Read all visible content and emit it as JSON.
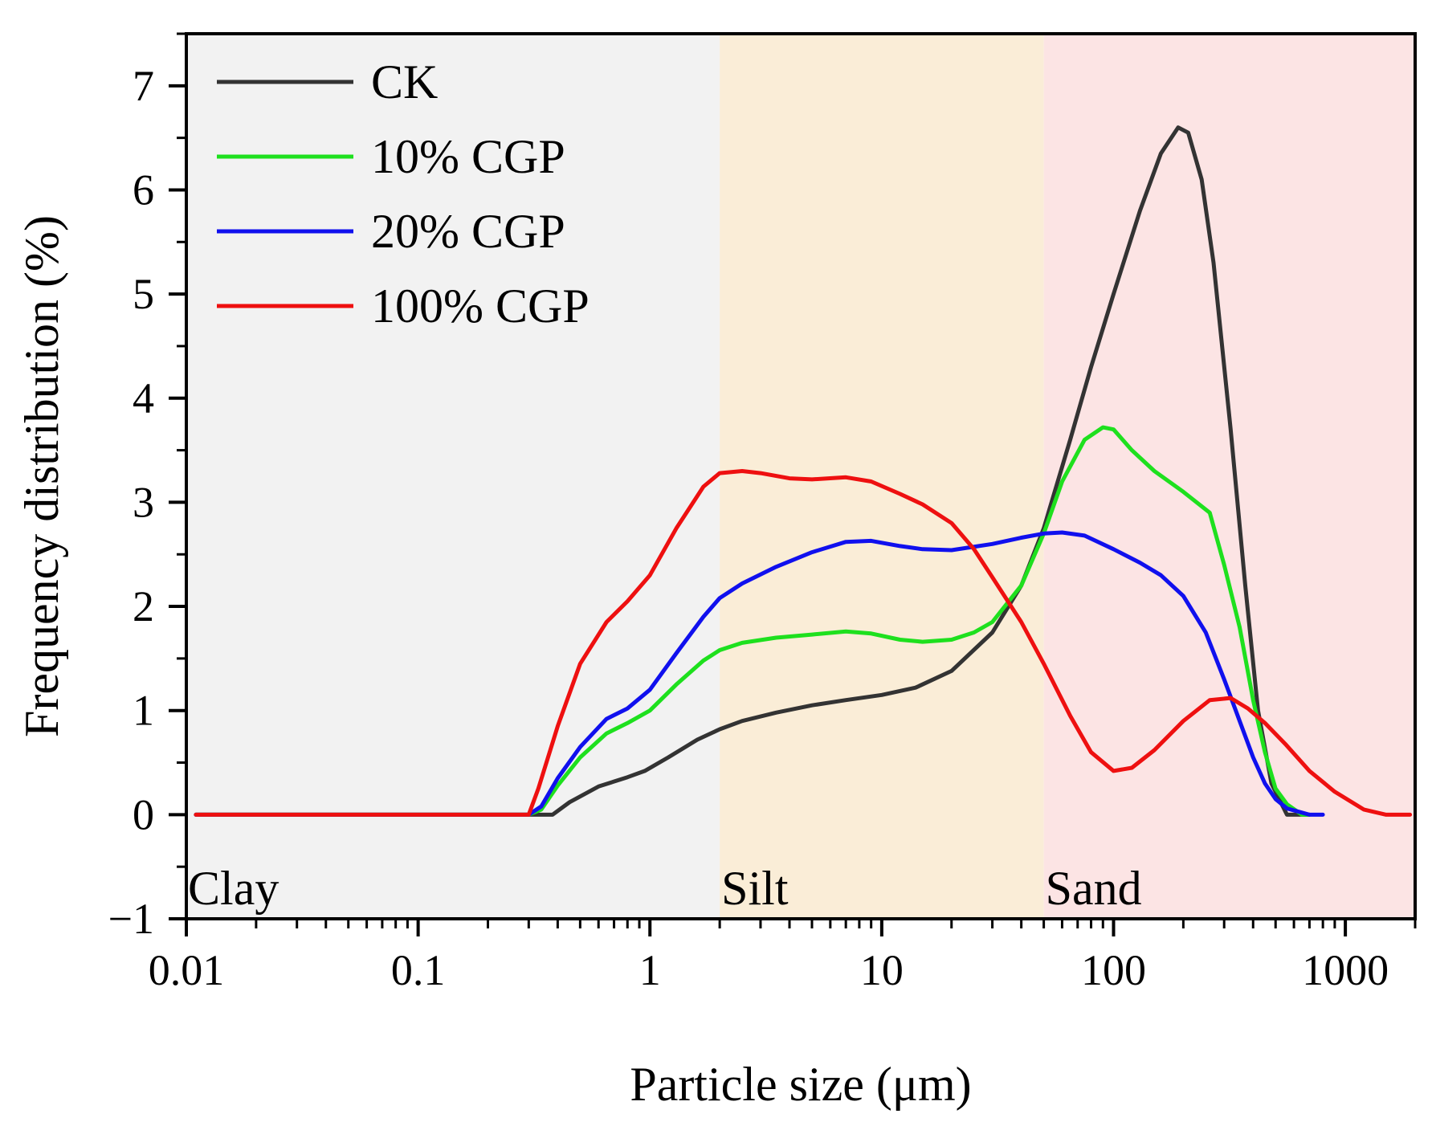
{
  "chart_data": {
    "type": "line",
    "xscale": "log",
    "xlim": [
      0.01,
      2000
    ],
    "ylim": [
      -1,
      7.5
    ],
    "xlabel": "Particle size (μm)",
    "ylabel": "Frequency distribution (%)",
    "xticks": [
      {
        "value": 0.01,
        "label": "0.01"
      },
      {
        "value": 0.1,
        "label": "0.1"
      },
      {
        "value": 1,
        "label": "1"
      },
      {
        "value": 10,
        "label": "10"
      },
      {
        "value": 100,
        "label": "100"
      },
      {
        "value": 1000,
        "label": "1000"
      }
    ],
    "yticks": [
      {
        "value": -1,
        "label": "−1"
      },
      {
        "value": 0,
        "label": "0"
      },
      {
        "value": 1,
        "label": "1"
      },
      {
        "value": 2,
        "label": "2"
      },
      {
        "value": 3,
        "label": "3"
      },
      {
        "value": 4,
        "label": "4"
      },
      {
        "value": 5,
        "label": "5"
      },
      {
        "value": 6,
        "label": "6"
      },
      {
        "value": 7,
        "label": "7"
      }
    ],
    "regions": [
      {
        "name": "Clay",
        "from": 0.01,
        "to": 2,
        "color": "#f2f2f2"
      },
      {
        "name": "Silt",
        "from": 2,
        "to": 50,
        "color": "#faedd7"
      },
      {
        "name": "Sand",
        "from": 50,
        "to": 2000,
        "color": "#fce4e4"
      }
    ],
    "legend_position": "top-left",
    "series": [
      {
        "name": "CK",
        "color": "#333333",
        "x": [
          0.011,
          0.3,
          0.38,
          0.45,
          0.6,
          0.8,
          0.95,
          1.2,
          1.6,
          2.0,
          2.5,
          3.5,
          5,
          7,
          10,
          14,
          20,
          30,
          40,
          50,
          65,
          80,
          100,
          130,
          160,
          190,
          210,
          240,
          270,
          320,
          370,
          420,
          480,
          560,
          650,
          700
        ],
        "y": [
          0,
          0,
          0,
          0.12,
          0.27,
          0.36,
          0.42,
          0.55,
          0.72,
          0.82,
          0.9,
          0.98,
          1.05,
          1.1,
          1.15,
          1.22,
          1.38,
          1.75,
          2.2,
          2.75,
          3.6,
          4.3,
          5.0,
          5.8,
          6.35,
          6.6,
          6.55,
          6.1,
          5.3,
          3.7,
          2.2,
          1.0,
          0.3,
          0.0,
          0.0,
          0.0
        ]
      },
      {
        "name": "10% CGP",
        "color": "#1ee01e",
        "x": [
          0.011,
          0.3,
          0.34,
          0.4,
          0.5,
          0.65,
          0.8,
          1.0,
          1.3,
          1.7,
          2.0,
          2.5,
          3.5,
          5,
          7,
          9,
          12,
          15,
          20,
          25,
          30,
          40,
          50,
          60,
          75,
          90,
          100,
          120,
          150,
          200,
          260,
          300,
          350,
          400,
          450,
          500,
          560,
          650,
          700
        ],
        "y": [
          0,
          0,
          0.05,
          0.28,
          0.55,
          0.78,
          0.88,
          1.0,
          1.25,
          1.48,
          1.58,
          1.65,
          1.7,
          1.73,
          1.76,
          1.74,
          1.68,
          1.66,
          1.68,
          1.75,
          1.85,
          2.2,
          2.7,
          3.2,
          3.6,
          3.72,
          3.7,
          3.5,
          3.3,
          3.1,
          2.9,
          2.4,
          1.8,
          1.1,
          0.6,
          0.25,
          0.1,
          0.0,
          0.0
        ]
      },
      {
        "name": "20% CGP",
        "color": "#1010ee",
        "x": [
          0.011,
          0.3,
          0.34,
          0.4,
          0.5,
          0.65,
          0.8,
          1.0,
          1.3,
          1.7,
          2.0,
          2.5,
          3.5,
          5,
          7,
          9,
          12,
          15,
          20,
          30,
          40,
          50,
          60,
          75,
          100,
          130,
          160,
          200,
          250,
          300,
          350,
          400,
          450,
          500,
          560,
          650,
          700,
          800
        ],
        "y": [
          0,
          0,
          0.08,
          0.35,
          0.65,
          0.92,
          1.02,
          1.2,
          1.55,
          1.9,
          2.08,
          2.22,
          2.38,
          2.52,
          2.62,
          2.63,
          2.58,
          2.55,
          2.54,
          2.6,
          2.66,
          2.7,
          2.71,
          2.68,
          2.55,
          2.42,
          2.3,
          2.1,
          1.75,
          1.3,
          0.9,
          0.55,
          0.3,
          0.15,
          0.06,
          0.02,
          0.0,
          0.0
        ]
      },
      {
        "name": "100% CGP",
        "color": "#ee1010",
        "x": [
          0.011,
          0.3,
          0.33,
          0.4,
          0.5,
          0.65,
          0.8,
          1.0,
          1.3,
          1.7,
          2.0,
          2.5,
          3.0,
          4,
          5,
          7,
          9,
          12,
          15,
          20,
          25,
          30,
          40,
          50,
          65,
          80,
          100,
          120,
          150,
          200,
          260,
          320,
          380,
          450,
          550,
          700,
          900,
          1200,
          1500,
          1900
        ],
        "y": [
          0,
          0,
          0.25,
          0.85,
          1.45,
          1.85,
          2.05,
          2.3,
          2.75,
          3.15,
          3.28,
          3.3,
          3.28,
          3.23,
          3.22,
          3.24,
          3.2,
          3.08,
          2.98,
          2.8,
          2.55,
          2.28,
          1.85,
          1.45,
          0.95,
          0.6,
          0.42,
          0.45,
          0.62,
          0.9,
          1.1,
          1.12,
          1.02,
          0.88,
          0.68,
          0.42,
          0.22,
          0.05,
          0.0,
          0.0
        ]
      }
    ]
  }
}
